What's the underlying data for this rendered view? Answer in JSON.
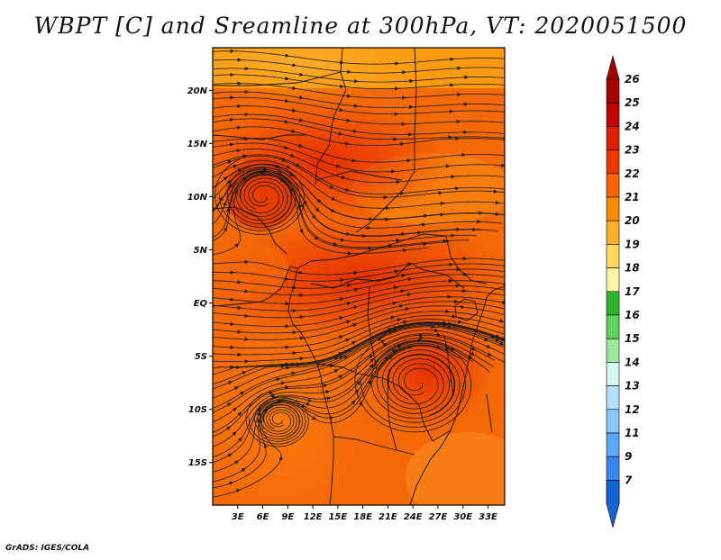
{
  "title": "WBPT [C] and Sreamline at 300hPa, VT: 2020051500",
  "footer": "GrADS: IGES/COLA",
  "map": {
    "lon_range": [
      0,
      35
    ],
    "lat_range": [
      -19,
      24
    ],
    "lat_ticks": [
      {
        "value": 20,
        "label": "20N"
      },
      {
        "value": 15,
        "label": "15N"
      },
      {
        "value": 10,
        "label": "10N"
      },
      {
        "value": 5,
        "label": "5N"
      },
      {
        "value": 0,
        "label": "EQ"
      },
      {
        "value": -5,
        "label": "5S"
      },
      {
        "value": -10,
        "label": "10S"
      },
      {
        "value": -15,
        "label": "15S"
      }
    ],
    "lon_ticks": [
      {
        "value": 3,
        "label": "3E"
      },
      {
        "value": 6,
        "label": "6E"
      },
      {
        "value": 9,
        "label": "9E"
      },
      {
        "value": 12,
        "label": "12E"
      },
      {
        "value": 15,
        "label": "15E"
      },
      {
        "value": 18,
        "label": "18E"
      },
      {
        "value": 21,
        "label": "21E"
      },
      {
        "value": 24,
        "label": "24E"
      },
      {
        "value": 27,
        "label": "27E"
      },
      {
        "value": 30,
        "label": "30E"
      },
      {
        "value": 33,
        "label": "33E"
      }
    ],
    "vortices": [
      {
        "name": "cyclone-west-africa",
        "lon": 6,
        "lat": 10
      },
      {
        "name": "vortex-east-africa",
        "lon": 24.5,
        "lat": -7.5
      },
      {
        "name": "vortex-angola",
        "lon": 8,
        "lat": -11
      }
    ]
  },
  "colorbar": {
    "levels": [
      {
        "label": "26",
        "color": "#a50000"
      },
      {
        "label": "25",
        "color": "#c00000"
      },
      {
        "label": "24",
        "color": "#dd1d00"
      },
      {
        "label": "23",
        "color": "#ee3a00"
      },
      {
        "label": "22",
        "color": "#fa6400"
      },
      {
        "label": "21",
        "color": "#fc8c00"
      },
      {
        "label": "20",
        "color": "#fdae2a"
      },
      {
        "label": "19",
        "color": "#fed760"
      },
      {
        "label": "18",
        "color": "#fff5a5"
      },
      {
        "label": "17",
        "color": "#2db52d"
      },
      {
        "label": "16",
        "color": "#5ed25e"
      },
      {
        "label": "15",
        "color": "#9ee79e"
      },
      {
        "label": "14",
        "color": "#d7f7f5"
      },
      {
        "label": "13",
        "color": "#b5defa"
      },
      {
        "label": "12",
        "color": "#86c6f8"
      },
      {
        "label": "11",
        "color": "#5aa7f5"
      },
      {
        "label": "9",
        "color": "#3a85ee"
      },
      {
        "label": "7",
        "color": "#1f63d9"
      }
    ],
    "bottom_color": "#1464d2"
  },
  "colors": {
    "background": "#ffffff",
    "frame": "#000000",
    "streamline": "#1a1a1a",
    "boundary": "#111111"
  }
}
